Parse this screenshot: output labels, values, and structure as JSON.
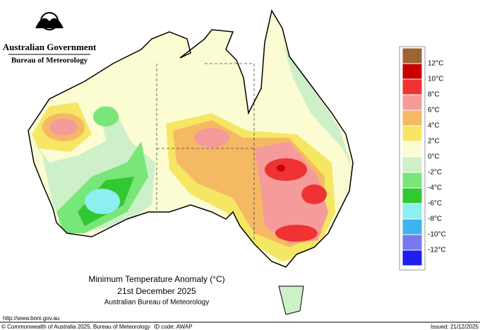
{
  "header": {
    "government": "Australian Government",
    "agency": "Bureau of Meteorology"
  },
  "map": {
    "title": "Minimum Temperature Anomaly (°C)",
    "date": "21st December 2025",
    "source": "Australian Bureau of Meteorology"
  },
  "legend": {
    "labels": [
      "12°C",
      "10°C",
      "8°C",
      "6°C",
      "4°C",
      "2°C",
      "0°C",
      "-2°C",
      "-4°C",
      "-6°C",
      "-8°C",
      "-10°C",
      "-12°C"
    ],
    "colors": [
      "#9c6433",
      "#c80000",
      "#f03232",
      "#f59b9b",
      "#f5b964",
      "#f5e664",
      "#fcfcd2",
      "#cdf0c8",
      "#78e678",
      "#32c832",
      "#8cf0f0",
      "#3cb4f0",
      "#7878f0",
      "#1e1ef0"
    ]
  },
  "footer": {
    "url": "http://www.bom.gov.au",
    "copyright": "© Commonwealth of Australia 2025, Bureau of Meteorology",
    "id_code": "ID code: AWAP",
    "issued": "Issued: 21/12/2025"
  }
}
